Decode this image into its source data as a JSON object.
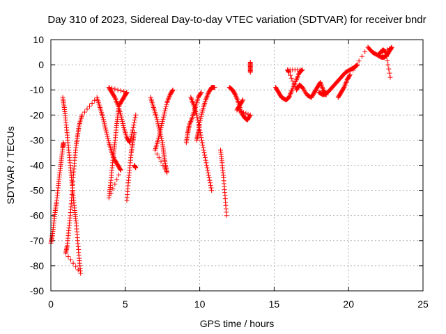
{
  "chart_data": {
    "type": "scatter",
    "title": "Day 310 of 2023, Sidereal Day-to-day VTEC variation (SDTVAR) for receiver bndr",
    "xlabel": "GPS time / hours",
    "ylabel": "SDTVAR / TECUs",
    "xlim": [
      0,
      25
    ],
    "ylim": [
      -90,
      10
    ],
    "xticks": [
      0,
      5,
      10,
      15,
      20,
      25
    ],
    "yticks": [
      -90,
      -80,
      -70,
      -60,
      -50,
      -40,
      -30,
      -20,
      -10,
      0,
      10
    ],
    "grid": true,
    "marker": "plus",
    "color": "#ff0000",
    "series": [
      {
        "points": [
          [
            0.0,
            -71
          ],
          [
            0.1,
            -68
          ],
          [
            0.2,
            -63
          ],
          [
            0.3,
            -58
          ],
          [
            0.4,
            -54
          ],
          [
            0.5,
            -48
          ],
          [
            0.6,
            -43
          ],
          [
            0.7,
            -38
          ],
          [
            0.8,
            -33
          ],
          [
            0.85,
            -31
          ],
          [
            0.8,
            -13
          ],
          [
            0.9,
            -17
          ],
          [
            1.0,
            -22
          ],
          [
            1.1,
            -28
          ],
          [
            1.2,
            -34
          ],
          [
            1.3,
            -40
          ],
          [
            1.4,
            -46
          ],
          [
            1.5,
            -52
          ],
          [
            1.6,
            -58
          ],
          [
            1.7,
            -63
          ],
          [
            1.8,
            -70
          ],
          [
            1.9,
            -77
          ],
          [
            2.0,
            -83
          ],
          [
            1.0,
            -75
          ],
          [
            1.1,
            -72
          ],
          [
            1.2,
            -66
          ],
          [
            1.3,
            -60
          ],
          [
            1.4,
            -53
          ],
          [
            1.5,
            -45
          ],
          [
            1.6,
            -38
          ],
          [
            1.7,
            -32
          ],
          [
            1.8,
            -28
          ],
          [
            1.9,
            -24
          ],
          [
            2.1,
            -20
          ],
          [
            3.1,
            -13
          ],
          [
            3.3,
            -17
          ],
          [
            3.5,
            -21
          ],
          [
            3.7,
            -26
          ],
          [
            3.9,
            -31
          ],
          [
            4.1,
            -35
          ],
          [
            4.3,
            -38
          ],
          [
            4.5,
            -40
          ],
          [
            4.7,
            -42
          ],
          [
            3.9,
            -53
          ],
          [
            4.0,
            -48
          ],
          [
            4.1,
            -42
          ],
          [
            4.2,
            -36
          ],
          [
            4.3,
            -31
          ],
          [
            4.4,
            -25
          ],
          [
            4.5,
            -20
          ],
          [
            4.6,
            -16
          ],
          [
            4.8,
            -14
          ],
          [
            5.0,
            -12
          ],
          [
            5.1,
            -11
          ],
          [
            3.9,
            -9
          ],
          [
            4.1,
            -11
          ],
          [
            4.3,
            -13
          ],
          [
            4.5,
            -16
          ],
          [
            4.7,
            -20
          ],
          [
            4.9,
            -25
          ],
          [
            5.1,
            -29
          ],
          [
            5.3,
            -31
          ],
          [
            5.5,
            -26
          ],
          [
            5.7,
            -20
          ],
          [
            5.1,
            -54
          ],
          [
            5.2,
            -47
          ],
          [
            5.3,
            -41
          ],
          [
            5.4,
            -35
          ],
          [
            5.5,
            -31
          ],
          [
            5.6,
            -27
          ],
          [
            5.6,
            -40
          ],
          [
            5.7,
            -41
          ],
          [
            6.7,
            -13
          ],
          [
            6.9,
            -17
          ],
          [
            7.1,
            -21
          ],
          [
            7.3,
            -26
          ],
          [
            7.5,
            -31
          ],
          [
            7.6,
            -36
          ],
          [
            7.7,
            -40
          ],
          [
            7.8,
            -43
          ],
          [
            7.0,
            -34
          ],
          [
            7.2,
            -30
          ],
          [
            7.4,
            -25
          ],
          [
            7.6,
            -20
          ],
          [
            7.8,
            -15
          ],
          [
            8.0,
            -12
          ],
          [
            8.2,
            -10
          ],
          [
            9.1,
            -31
          ],
          [
            9.2,
            -27
          ],
          [
            9.3,
            -24
          ],
          [
            9.5,
            -21
          ],
          [
            9.7,
            -17
          ],
          [
            9.9,
            -13
          ],
          [
            10.1,
            -11
          ],
          [
            9.8,
            -30
          ],
          [
            9.9,
            -27
          ],
          [
            10.0,
            -23
          ],
          [
            10.2,
            -18
          ],
          [
            10.4,
            -14
          ],
          [
            10.6,
            -11
          ],
          [
            10.8,
            -9
          ],
          [
            11.0,
            -9
          ],
          [
            9.4,
            -13
          ],
          [
            9.6,
            -16
          ],
          [
            9.8,
            -20
          ],
          [
            10.0,
            -26
          ],
          [
            10.2,
            -32
          ],
          [
            10.4,
            -38
          ],
          [
            10.6,
            -44
          ],
          [
            10.8,
            -50
          ],
          [
            11.4,
            -34
          ],
          [
            11.5,
            -39
          ],
          [
            11.6,
            -45
          ],
          [
            11.7,
            -52
          ],
          [
            11.8,
            -60
          ],
          [
            12.0,
            -9
          ],
          [
            12.2,
            -10
          ],
          [
            12.4,
            -12
          ],
          [
            12.6,
            -15
          ],
          [
            12.8,
            -19
          ],
          [
            13.0,
            -21
          ],
          [
            13.2,
            -22
          ],
          [
            13.4,
            -20
          ],
          [
            12.5,
            -18
          ],
          [
            12.7,
            -16
          ],
          [
            12.9,
            -14
          ],
          [
            13.4,
            1
          ],
          [
            13.4,
            -1
          ],
          [
            13.4,
            -3
          ],
          [
            15.1,
            -9
          ],
          [
            15.3,
            -11
          ],
          [
            15.5,
            -13
          ],
          [
            15.8,
            -14
          ],
          [
            16.0,
            -13
          ],
          [
            16.2,
            -10
          ],
          [
            16.5,
            -6
          ],
          [
            16.7,
            -3
          ],
          [
            16.9,
            -2
          ],
          [
            15.9,
            -2
          ],
          [
            16.0,
            -3
          ],
          [
            16.5,
            -10
          ],
          [
            16.7,
            -8
          ],
          [
            16.9,
            -9
          ],
          [
            17.2,
            -12
          ],
          [
            17.5,
            -13
          ],
          [
            17.7,
            -11
          ],
          [
            17.9,
            -9
          ],
          [
            18.1,
            -7
          ],
          [
            18.3,
            -10
          ],
          [
            18.5,
            -12
          ],
          [
            18.0,
            -11
          ],
          [
            18.3,
            -12
          ],
          [
            18.6,
            -11
          ],
          [
            18.9,
            -9
          ],
          [
            19.2,
            -7
          ],
          [
            19.5,
            -5
          ],
          [
            19.8,
            -3
          ],
          [
            20.1,
            -2
          ],
          [
            20.4,
            -1
          ],
          [
            20.6,
            0
          ],
          [
            19.3,
            -13
          ],
          [
            19.5,
            -11
          ],
          [
            19.7,
            -9
          ],
          [
            19.9,
            -6
          ],
          [
            20.1,
            -4
          ],
          [
            21.3,
            7
          ],
          [
            21.6,
            5
          ],
          [
            21.9,
            4
          ],
          [
            22.2,
            3
          ],
          [
            22.4,
            3
          ],
          [
            22.6,
            4
          ],
          [
            22.8,
            6
          ],
          [
            22.9,
            7
          ],
          [
            22.0,
            4
          ],
          [
            22.3,
            6
          ],
          [
            22.5,
            5
          ],
          [
            22.8,
            -5
          ]
        ]
      }
    ]
  }
}
